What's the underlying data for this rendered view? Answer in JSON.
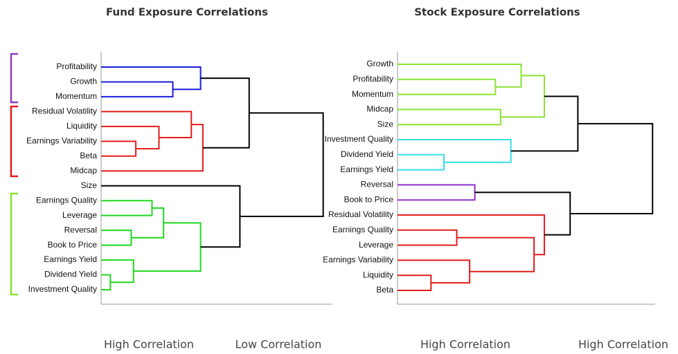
{
  "chart_data": [
    {
      "type": "dendrogram",
      "title": "Fund Exposure Correlations",
      "leaves": [
        "Profitability",
        "Growth",
        "Momentum",
        "Residual Volatility",
        "Liquidity",
        "Earnings Variability",
        "Beta",
        "Midcap",
        "Size",
        "Earnings Quality",
        "Leverage",
        "Reversal",
        "Book to Price",
        "Earnings Yield",
        "Dividend Yield",
        "Investment Quality"
      ],
      "links": [
        {
          "pair": [
            1,
            2
          ],
          "height": 0.31,
          "color": "#1a1adb"
        },
        {
          "pair": [
            0,
            16
          ],
          "height": 0.43,
          "color": "#1a1adb"
        },
        {
          "pair": [
            5,
            6
          ],
          "height": 0.15,
          "color": "#e31b1b"
        },
        {
          "pair": [
            4,
            18
          ],
          "height": 0.25,
          "color": "#e31b1b"
        },
        {
          "pair": [
            3,
            19
          ],
          "height": 0.39,
          "color": "#e31b1b"
        },
        {
          "pair": [
            20,
            7
          ],
          "height": 0.44,
          "color": "#e31b1b"
        },
        {
          "pair": [
            17,
            21
          ],
          "height": 0.64,
          "color": "#000000"
        },
        {
          "pair": [
            9,
            10
          ],
          "height": 0.22,
          "color": "#1ed81e"
        },
        {
          "pair": [
            11,
            12
          ],
          "height": 0.13,
          "color": "#1ed81e"
        },
        {
          "pair": [
            23,
            24
          ],
          "height": 0.27,
          "color": "#1ed81e"
        },
        {
          "pair": [
            14,
            15
          ],
          "height": 0.04,
          "color": "#1ed81e"
        },
        {
          "pair": [
            13,
            26
          ],
          "height": 0.14,
          "color": "#1ed81e"
        },
        {
          "pair": [
            25,
            27
          ],
          "height": 0.43,
          "color": "#1ed81e"
        },
        {
          "pair": [
            8,
            28
          ],
          "height": 0.6,
          "color": "#000000"
        },
        {
          "pair": [
            22,
            29
          ],
          "height": 0.96,
          "color": "#000000"
        }
      ],
      "xlim": [
        0,
        1
      ],
      "xlabels": [
        "High Correlation",
        "Low Correlation"
      ]
    },
    {
      "type": "dendrogram",
      "title": "Stock Exposure Correlations",
      "leaves": [
        "Growth",
        "Profitability",
        "Momentum",
        "Midcap",
        "Size",
        "Investment Quality",
        "Dividend Yield",
        "Earnings Yield",
        "Reversal",
        "Book to Price",
        "Residual Volatility",
        "Earnings Quality",
        "Leverage",
        "Earnings Variability",
        "Liquidity",
        "Beta"
      ],
      "links": [
        {
          "pair": [
            1,
            2
          ],
          "height": 0.38,
          "color": "#8ae234"
        },
        {
          "pair": [
            0,
            16
          ],
          "height": 0.48,
          "color": "#8ae234"
        },
        {
          "pair": [
            3,
            4
          ],
          "height": 0.4,
          "color": "#8ae234"
        },
        {
          "pair": [
            17,
            18
          ],
          "height": 0.57,
          "color": "#8ae234"
        },
        {
          "pair": [
            6,
            7
          ],
          "height": 0.18,
          "color": "#33dfe6"
        },
        {
          "pair": [
            5,
            20
          ],
          "height": 0.44,
          "color": "#33dfe6"
        },
        {
          "pair": [
            19,
            21
          ],
          "height": 0.7,
          "color": "#000000"
        },
        {
          "pair": [
            8,
            9
          ],
          "height": 0.3,
          "color": "#8a2fd0"
        },
        {
          "pair": [
            11,
            12
          ],
          "height": 0.23,
          "color": "#e31b1b"
        },
        {
          "pair": [
            14,
            15
          ],
          "height": 0.13,
          "color": "#e31b1b"
        },
        {
          "pair": [
            13,
            25
          ],
          "height": 0.28,
          "color": "#e31b1b"
        },
        {
          "pair": [
            24,
            26
          ],
          "height": 0.53,
          "color": "#e31b1b"
        },
        {
          "pair": [
            10,
            27
          ],
          "height": 0.57,
          "color": "#e31b1b"
        },
        {
          "pair": [
            23,
            28
          ],
          "height": 0.67,
          "color": "#000000"
        },
        {
          "pair": [
            22,
            29
          ],
          "height": 0.99,
          "color": "#000000"
        }
      ],
      "xlim": [
        0,
        1
      ],
      "xlabels": [
        "High Correlation",
        "High Correlation"
      ]
    }
  ]
}
